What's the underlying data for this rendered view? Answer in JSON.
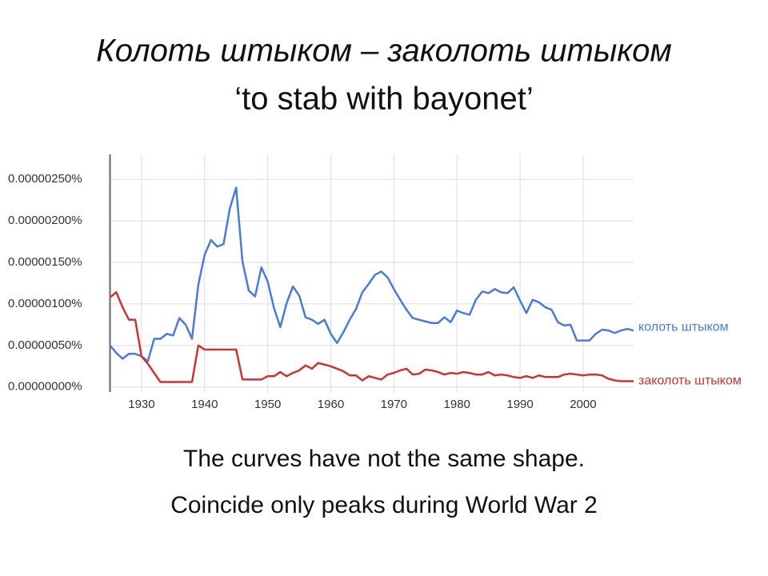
{
  "slide": {
    "title": [
      "Колоть штыком – заколоть штыком",
      "‘to stab with bayonet’"
    ],
    "notes": [
      "The curves have not the same shape.",
      "Coincide only peaks during World War 2"
    ]
  },
  "chart_data": {
    "type": "line",
    "x": [
      1925,
      1926,
      1927,
      1928,
      1929,
      1930,
      1931,
      1932,
      1933,
      1934,
      1935,
      1936,
      1937,
      1938,
      1939,
      1940,
      1941,
      1942,
      1943,
      1944,
      1945,
      1946,
      1947,
      1948,
      1949,
      1950,
      1951,
      1952,
      1953,
      1954,
      1955,
      1956,
      1957,
      1958,
      1959,
      1960,
      1961,
      1962,
      1963,
      1964,
      1965,
      1966,
      1967,
      1968,
      1969,
      1970,
      1971,
      1972,
      1973,
      1974,
      1975,
      1976,
      1977,
      1978,
      1979,
      1980,
      1981,
      1982,
      1983,
      1984,
      1985,
      1986,
      1987,
      1988,
      1989,
      1990,
      1991,
      1992,
      1993,
      1994,
      1995,
      1996,
      1997,
      1998,
      1999,
      2000,
      2001,
      2002,
      2003,
      2004,
      2005,
      2006,
      2007,
      2008
    ],
    "series": [
      {
        "name": "колоть штыком",
        "color": "#4a7bd6",
        "values": [
          5e-07,
          4.1e-07,
          3.4e-07,
          4e-07,
          4e-07,
          3.7e-07,
          3.1e-07,
          5.8e-07,
          5.8e-07,
          6.4e-07,
          6.2e-07,
          8.3e-07,
          7.5e-07,
          5.8e-07,
          1.23e-06,
          1.59e-06,
          1.77e-06,
          1.69e-06,
          1.72e-06,
          2.15e-06,
          2.4e-06,
          1.51e-06,
          1.16e-06,
          1.09e-06,
          1.44e-06,
          1.27e-06,
          9.5e-07,
          7.2e-07,
          1.01e-06,
          1.21e-06,
          1.1e-06,
          8.4e-07,
          8.1e-07,
          7.6e-07,
          8.1e-07,
          6.4e-07,
          5.3e-07,
          6.6e-07,
          8.1e-07,
          9.4e-07,
          1.14e-06,
          1.24e-06,
          1.35e-06,
          1.39e-06,
          1.32e-06,
          1.18e-06,
          1.05e-06,
          9.3e-07,
          8.3e-07,
          8.1e-07,
          7.9e-07,
          7.7e-07,
          7.7e-07,
          8.4e-07,
          7.8e-07,
          9.2e-07,
          8.9e-07,
          8.7e-07,
          1.05e-06,
          1.15e-06,
          1.13e-06,
          1.18e-06,
          1.14e-06,
          1.13e-06,
          1.2e-06,
          1.04e-06,
          8.9e-07,
          1.05e-06,
          1.02e-06,
          9.6e-07,
          9.3e-07,
          7.8e-07,
          7.4e-07,
          7.5e-07,
          5.6e-07,
          5.6e-07,
          5.6e-07,
          6.4e-07,
          6.9e-07,
          6.8e-07,
          6.5e-07,
          6.8e-07,
          7e-07,
          6.8e-07
        ]
      },
      {
        "name": "заколоть штыком",
        "color": "#cc3333",
        "values": [
          1.08e-06,
          1.14e-06,
          9.6e-07,
          8.1e-07,
          8.1e-07,
          3.7e-07,
          2.8e-07,
          1.7e-07,
          6e-08,
          6e-08,
          6e-08,
          6e-08,
          6e-08,
          6e-08,
          5e-07,
          4.5e-07,
          4.5e-07,
          4.5e-07,
          4.5e-07,
          4.5e-07,
          4.5e-07,
          9e-08,
          9e-08,
          9e-08,
          9e-08,
          1.3e-07,
          1.3e-07,
          1.8e-07,
          1.3e-07,
          1.7e-07,
          2e-07,
          2.6e-07,
          2.2e-07,
          2.9e-07,
          2.7e-07,
          2.5e-07,
          2.2e-07,
          1.9e-07,
          1.4e-07,
          1.4e-07,
          8e-08,
          1.3e-07,
          1.1e-07,
          9e-08,
          1.5e-07,
          1.7e-07,
          2e-07,
          2.2e-07,
          1.5e-07,
          1.6e-07,
          2.1e-07,
          2e-07,
          1.8e-07,
          1.5e-07,
          1.7e-07,
          1.6e-07,
          1.8e-07,
          1.7e-07,
          1.5e-07,
          1.5e-07,
          1.8e-07,
          1.4e-07,
          1.5e-07,
          1.4e-07,
          1.2e-07,
          1.1e-07,
          1.3e-07,
          1.1e-07,
          1.4e-07,
          1.2e-07,
          1.2e-07,
          1.2e-07,
          1.5e-07,
          1.6e-07,
          1.5e-07,
          1.4e-07,
          1.5e-07,
          1.5e-07,
          1.4e-07,
          1e-07,
          8e-08,
          7e-08,
          7e-08,
          7e-08
        ]
      }
    ],
    "xlim": [
      1925,
      2008
    ],
    "xticks": [
      1930,
      1940,
      1950,
      1960,
      1970,
      1980,
      1990,
      2000
    ],
    "ylim": [
      -6e-08,
      2.8e-06
    ],
    "yticks": [
      {
        "value": 0,
        "label": "0.00000000%"
      },
      {
        "value": 5e-07,
        "label": "0.00000050%"
      },
      {
        "value": 1e-06,
        "label": "0.00000100%"
      },
      {
        "value": 1.5e-06,
        "label": "0.00000150%"
      },
      {
        "value": 2e-06,
        "label": "0.00000200%"
      },
      {
        "value": 2.5e-06,
        "label": "0.00000250%"
      }
    ],
    "grid": true,
    "legend": "line-end"
  }
}
